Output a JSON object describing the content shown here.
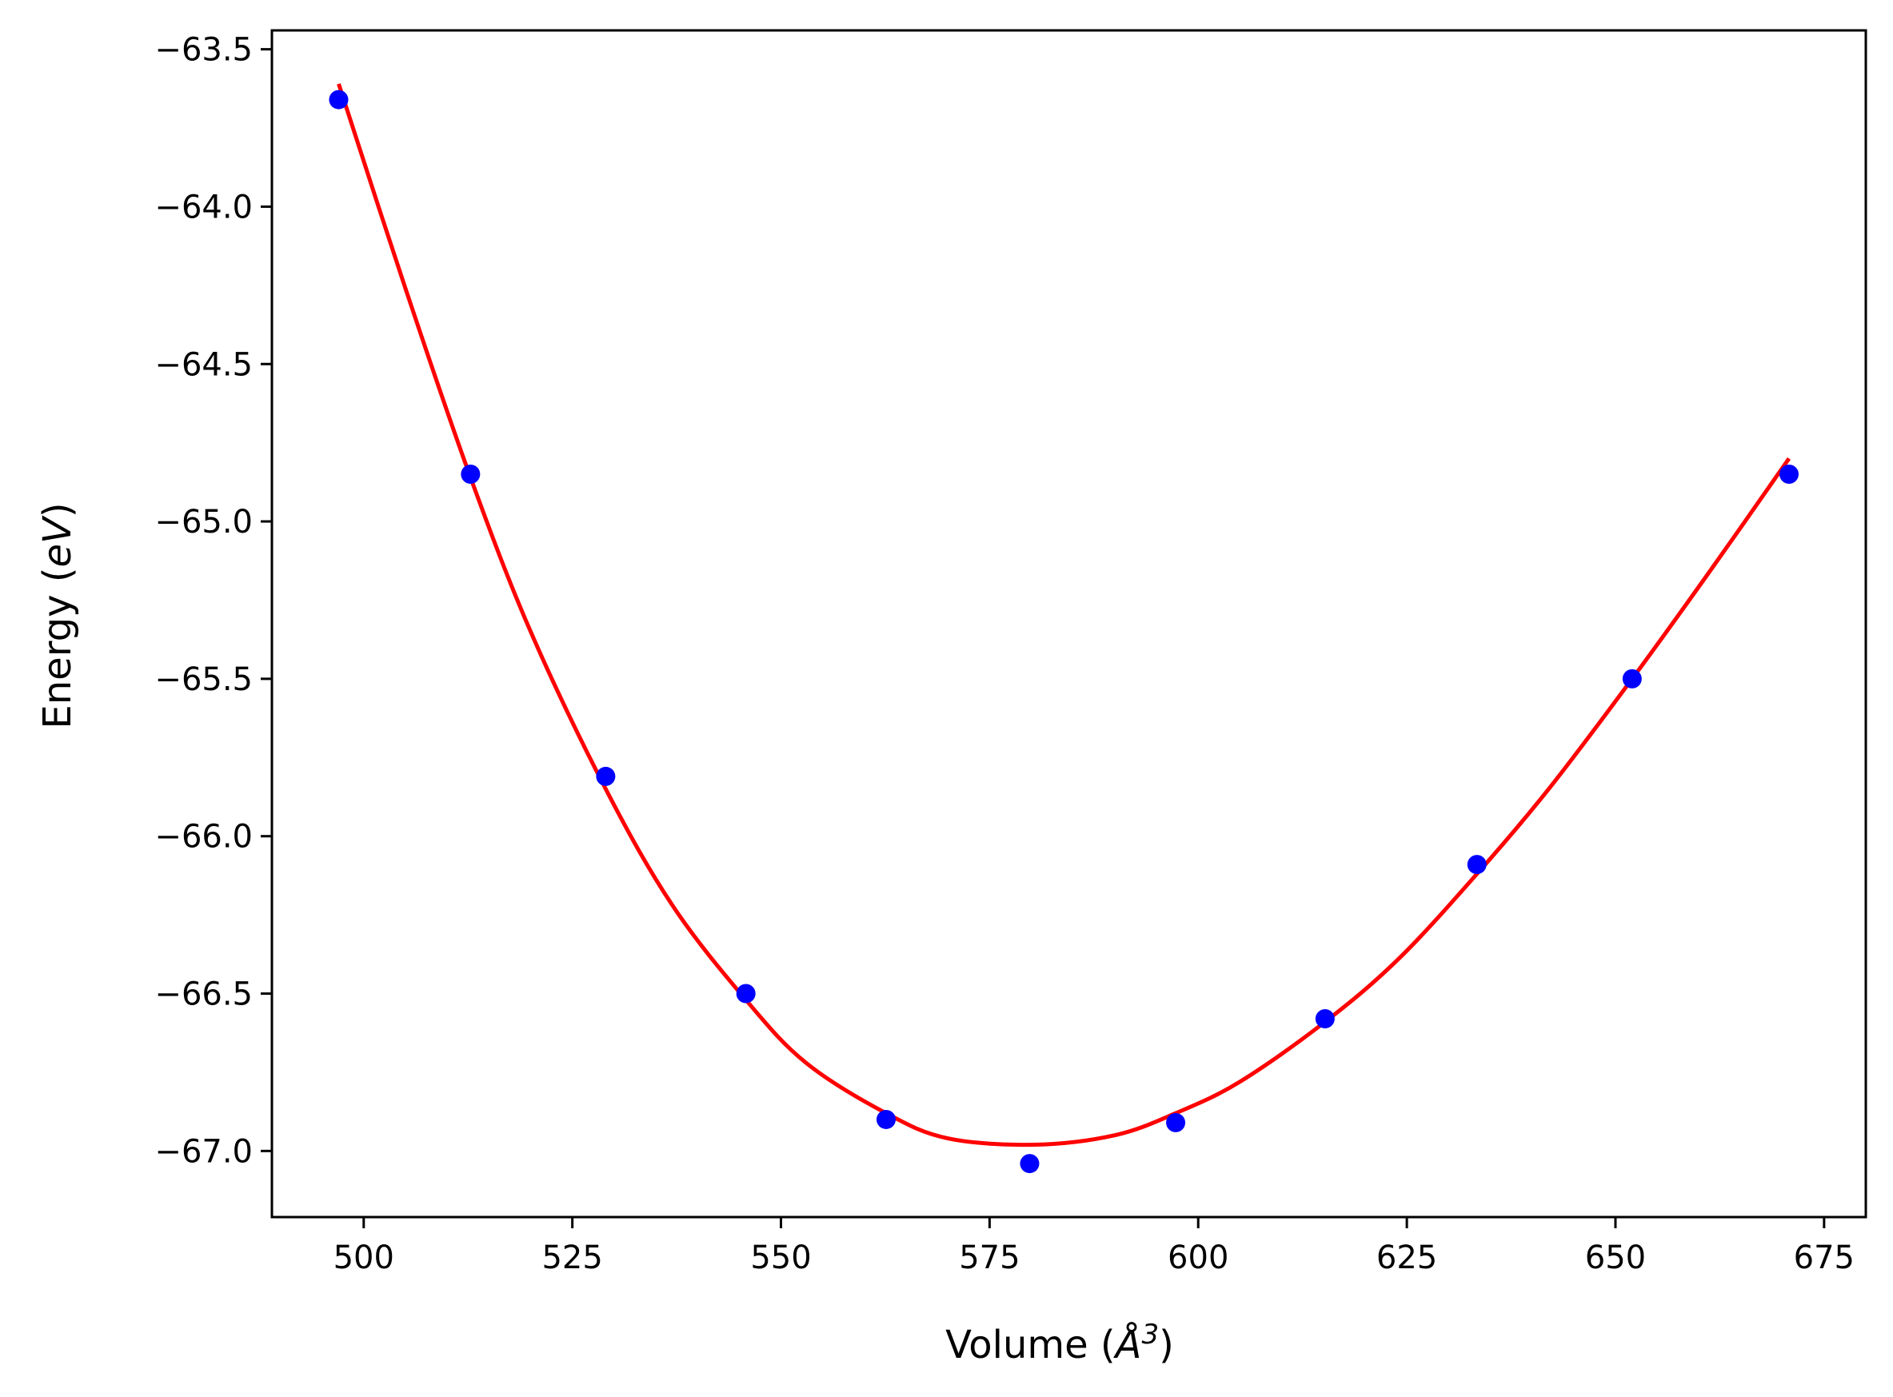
{
  "chart_data": {
    "type": "scatter",
    "title": "",
    "xlabel": "Volume (",
    "xlabel_symbol": "Å",
    "xlabel_exp": "3",
    "xlabel_close": ")",
    "ylabel": "Energy (",
    "ylabel_unit": "eV",
    "ylabel_close": ")",
    "xlim": [
      489,
      680
    ],
    "ylim": [
      -67.21,
      -63.44
    ],
    "xticks": [
      500,
      525,
      550,
      575,
      600,
      625,
      650,
      675
    ],
    "xtick_labels": [
      "500",
      "525",
      "550",
      "575",
      "600",
      "625",
      "650",
      "675"
    ],
    "yticks": [
      -63.5,
      -64.0,
      -64.5,
      -65.0,
      -65.5,
      -66.0,
      -66.5,
      -67.0
    ],
    "ytick_labels": [
      "−63.5",
      "−64.0",
      "−64.5",
      "−65.0",
      "−65.5",
      "−66.0",
      "−66.5",
      "−67.0"
    ],
    "grid": false,
    "series": [
      {
        "kind": "scatter",
        "color": "#0000ff",
        "points": [
          {
            "x": 497.0,
            "y": -63.66
          },
          {
            "x": 512.8,
            "y": -64.85
          },
          {
            "x": 529.0,
            "y": -65.81
          },
          {
            "x": 545.8,
            "y": -66.5
          },
          {
            "x": 562.6,
            "y": -66.9
          },
          {
            "x": 579.8,
            "y": -67.04
          },
          {
            "x": 597.3,
            "y": -66.91
          },
          {
            "x": 615.2,
            "y": -66.58
          },
          {
            "x": 633.4,
            "y": -66.09
          },
          {
            "x": 652.0,
            "y": -65.5
          },
          {
            "x": 670.8,
            "y": -64.85
          }
        ]
      },
      {
        "kind": "line",
        "color": "#ff0000",
        "points": [
          {
            "x": 497.0,
            "y": -63.61
          },
          {
            "x": 505.0,
            "y": -64.26
          },
          {
            "x": 512.8,
            "y": -64.86
          },
          {
            "x": 520.0,
            "y": -65.35
          },
          {
            "x": 529.0,
            "y": -65.85
          },
          {
            "x": 537.0,
            "y": -66.22
          },
          {
            "x": 545.8,
            "y": -66.52
          },
          {
            "x": 553.0,
            "y": -66.72
          },
          {
            "x": 562.6,
            "y": -66.88
          },
          {
            "x": 570.0,
            "y": -66.96
          },
          {
            "x": 580.4,
            "y": -66.98
          },
          {
            "x": 590.0,
            "y": -66.95
          },
          {
            "x": 597.3,
            "y": -66.88
          },
          {
            "x": 605.0,
            "y": -66.78
          },
          {
            "x": 615.2,
            "y": -66.59
          },
          {
            "x": 624.0,
            "y": -66.39
          },
          {
            "x": 633.4,
            "y": -66.12
          },
          {
            "x": 642.0,
            "y": -65.85
          },
          {
            "x": 652.0,
            "y": -65.5
          },
          {
            "x": 661.0,
            "y": -65.17
          },
          {
            "x": 670.8,
            "y": -64.8
          }
        ]
      }
    ]
  }
}
